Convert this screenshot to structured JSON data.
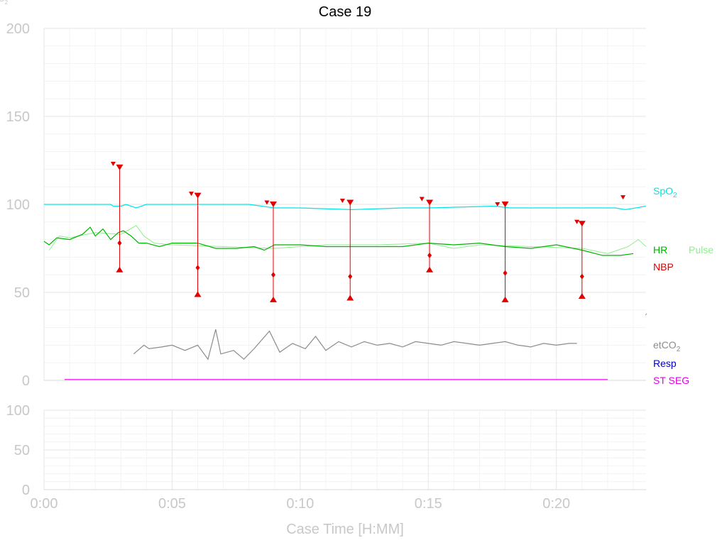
{
  "chart_data": {
    "type": "line",
    "title": "Case 19",
    "xlabel": "Case Time [H:MM]",
    "x_ticks": [
      "0:00",
      "0:05",
      "0:10",
      "0:15",
      "0:20"
    ],
    "xlim": [
      0,
      23.5
    ],
    "grid": true,
    "top_panel": {
      "ylim": [
        0,
        200
      ],
      "y_ticks": [
        "0",
        "50",
        "100",
        "150",
        "200"
      ],
      "corner_label": "O2",
      "legend": [
        {
          "name": "SpO",
          "subscript": "2",
          "color": "#00e5e5"
        },
        {
          "name": "HR",
          "color": "#00b400"
        },
        {
          "name": "Pulse",
          "color": "#90ee90"
        },
        {
          "name": "NBP",
          "color": "#e00000"
        },
        {
          "name": "etCO",
          "subscript": "2",
          "color": "#8c8c8c"
        },
        {
          "name": "Resp",
          "color": "#0000cc"
        },
        {
          "name": "ST SEG",
          "color": "#e600e6"
        }
      ],
      "series": [
        {
          "name": "SpO2",
          "color": "#00e5e5",
          "x": [
            0,
            2.6,
            2.7,
            3.0,
            3.2,
            3.6,
            4.0,
            8,
            9,
            10.0,
            12,
            14,
            15.0,
            17.6,
            18.2,
            22.3,
            22.7,
            23.5
          ],
          "y": [
            100,
            100,
            99,
            99,
            100,
            98,
            100,
            100,
            98,
            98,
            97,
            98,
            98,
            99,
            98,
            98,
            97,
            99
          ]
        },
        {
          "name": "HR",
          "color": "#00b400",
          "x": [
            0,
            0.2,
            0.5,
            1.0,
            1.5,
            1.8,
            2.0,
            2.3,
            2.6,
            2.9,
            3.1,
            3.4,
            3.7,
            4.0,
            4.5,
            5.0,
            6.0,
            6.7,
            7.5,
            8.2,
            8.6,
            9.0,
            10.0,
            11.0,
            12.0,
            13.0,
            14.0,
            15.0,
            16.0,
            17.0,
            18.0,
            19.0,
            20.0,
            21.0,
            21.8,
            22.5,
            23.0
          ],
          "y": [
            79,
            77,
            81,
            80,
            83,
            87,
            82,
            86,
            80,
            84,
            85,
            82,
            78,
            78,
            76,
            78,
            78,
            75,
            75,
            76,
            74,
            77,
            77,
            76,
            76,
            76,
            76,
            78,
            77,
            78,
            76,
            75,
            77,
            74,
            71,
            71,
            72
          ]
        },
        {
          "name": "Pulse",
          "color": "#90ee90",
          "x": [
            0.2,
            0.6,
            1.0,
            2.0,
            3.0,
            3.6,
            3.9,
            4.3,
            5.0,
            7.0,
            9.0,
            11.0,
            13.0,
            15.0,
            16.0,
            17.0,
            19.0,
            21.0,
            22.0,
            22.8,
            23.2,
            23.5
          ],
          "y": [
            74,
            82,
            81,
            84,
            83,
            88,
            82,
            78,
            77,
            76,
            75,
            77,
            77,
            78,
            75,
            77,
            76,
            75,
            72,
            76,
            80,
            76
          ]
        },
        {
          "name": "etCO2",
          "color": "#8c8c8c",
          "x": [
            3.5,
            3.9,
            4.1,
            4.6,
            5.0,
            5.5,
            6.0,
            6.4,
            6.7,
            6.9,
            7.4,
            7.8,
            8.2,
            8.8,
            9.2,
            9.7,
            10.2,
            10.6,
            11.0,
            11.5,
            12.0,
            12.5,
            13.0,
            13.5,
            14.0,
            14.5,
            15.0,
            15.5,
            16.0,
            16.5,
            17.0,
            17.5,
            18.0,
            18.5,
            19.0,
            19.5,
            20.0,
            20.5,
            20.8
          ],
          "y": [
            15,
            20,
            18,
            19,
            20,
            17,
            20,
            12,
            29,
            15,
            17,
            12,
            18,
            28,
            16,
            21,
            18,
            25,
            17,
            22,
            19,
            22,
            20,
            21,
            19,
            22,
            21,
            20,
            22,
            21,
            20,
            21,
            22,
            20,
            19,
            21,
            20,
            21,
            21
          ]
        },
        {
          "name": "ST SEG",
          "color": "#e600e6",
          "x": [
            0.8,
            3.0,
            6.0,
            10.0,
            14.0,
            18.0,
            22.0
          ],
          "y": [
            0.5,
            0.5,
            0.5,
            0.5,
            0.5,
            0.5,
            0.5
          ]
        }
      ],
      "nbp": [
        {
          "x": 2.95,
          "sys": 121,
          "mean": 78,
          "dia": 63,
          "x_marker": 2.7,
          "marker": 123
        },
        {
          "x": 6.0,
          "sys": 105,
          "mean": 64,
          "dia": 49,
          "x_marker": 5.75,
          "marker": 106
        },
        {
          "x": 8.95,
          "sys": 100,
          "mean": 60,
          "dia": 46,
          "x_marker": 8.7,
          "marker": 101
        },
        {
          "x": 11.95,
          "sys": 101,
          "mean": 59,
          "dia": 47,
          "x_marker": 11.65,
          "marker": 102
        },
        {
          "x": 15.05,
          "sys": 101,
          "mean": 71,
          "dia": 63,
          "x_marker": 14.75,
          "marker": 103
        },
        {
          "x": 18.0,
          "sys": 100,
          "mean": 61,
          "dia": 46,
          "x_marker": 17.7,
          "marker": 100
        },
        {
          "x": 21.0,
          "sys": 89,
          "mean": 59,
          "dia": 48,
          "x_marker": 20.8,
          "marker": 90
        },
        {
          "x": 22.6,
          "marker": 104
        }
      ]
    },
    "bottom_panel": {
      "ylim": [
        0,
        100
      ],
      "y_ticks": [
        "0",
        "50",
        "100"
      ],
      "series": []
    }
  }
}
